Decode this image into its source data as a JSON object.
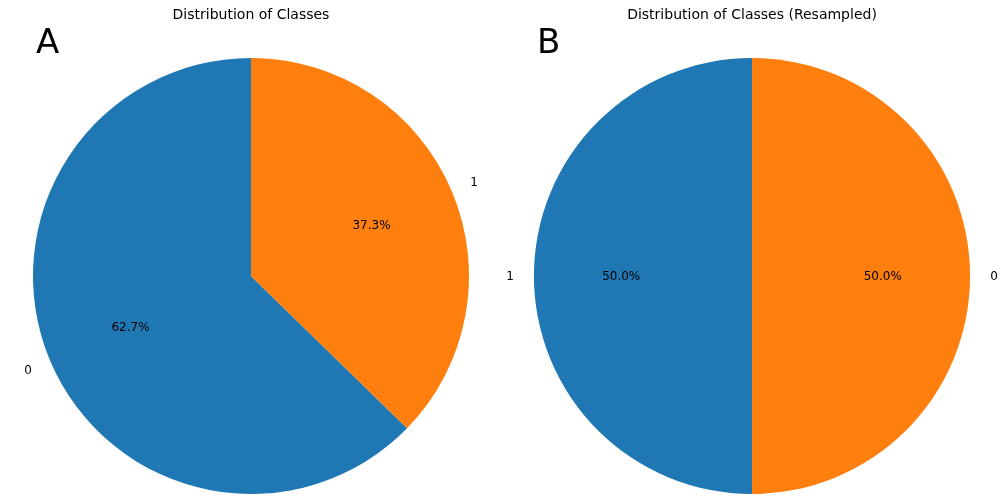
{
  "chart_data": [
    {
      "type": "pie",
      "title": "Distribution of Classes",
      "categories": [
        "0",
        "1"
      ],
      "values": [
        62.7,
        37.3
      ],
      "value_labels": [
        "62.7%",
        "37.3%"
      ],
      "colors": [
        "#1f77b4",
        "#ff7f0e"
      ],
      "annotations": [
        "A"
      ]
    },
    {
      "type": "pie",
      "title": "Distribution of Classes (Resampled)",
      "categories": [
        "1",
        "0"
      ],
      "values": [
        50,
        50
      ],
      "value_labels": [
        "50.0%",
        "50.0%"
      ],
      "colors": [
        "#1f77b4",
        "#ff7f0e"
      ],
      "annotations": [
        "B"
      ]
    }
  ]
}
